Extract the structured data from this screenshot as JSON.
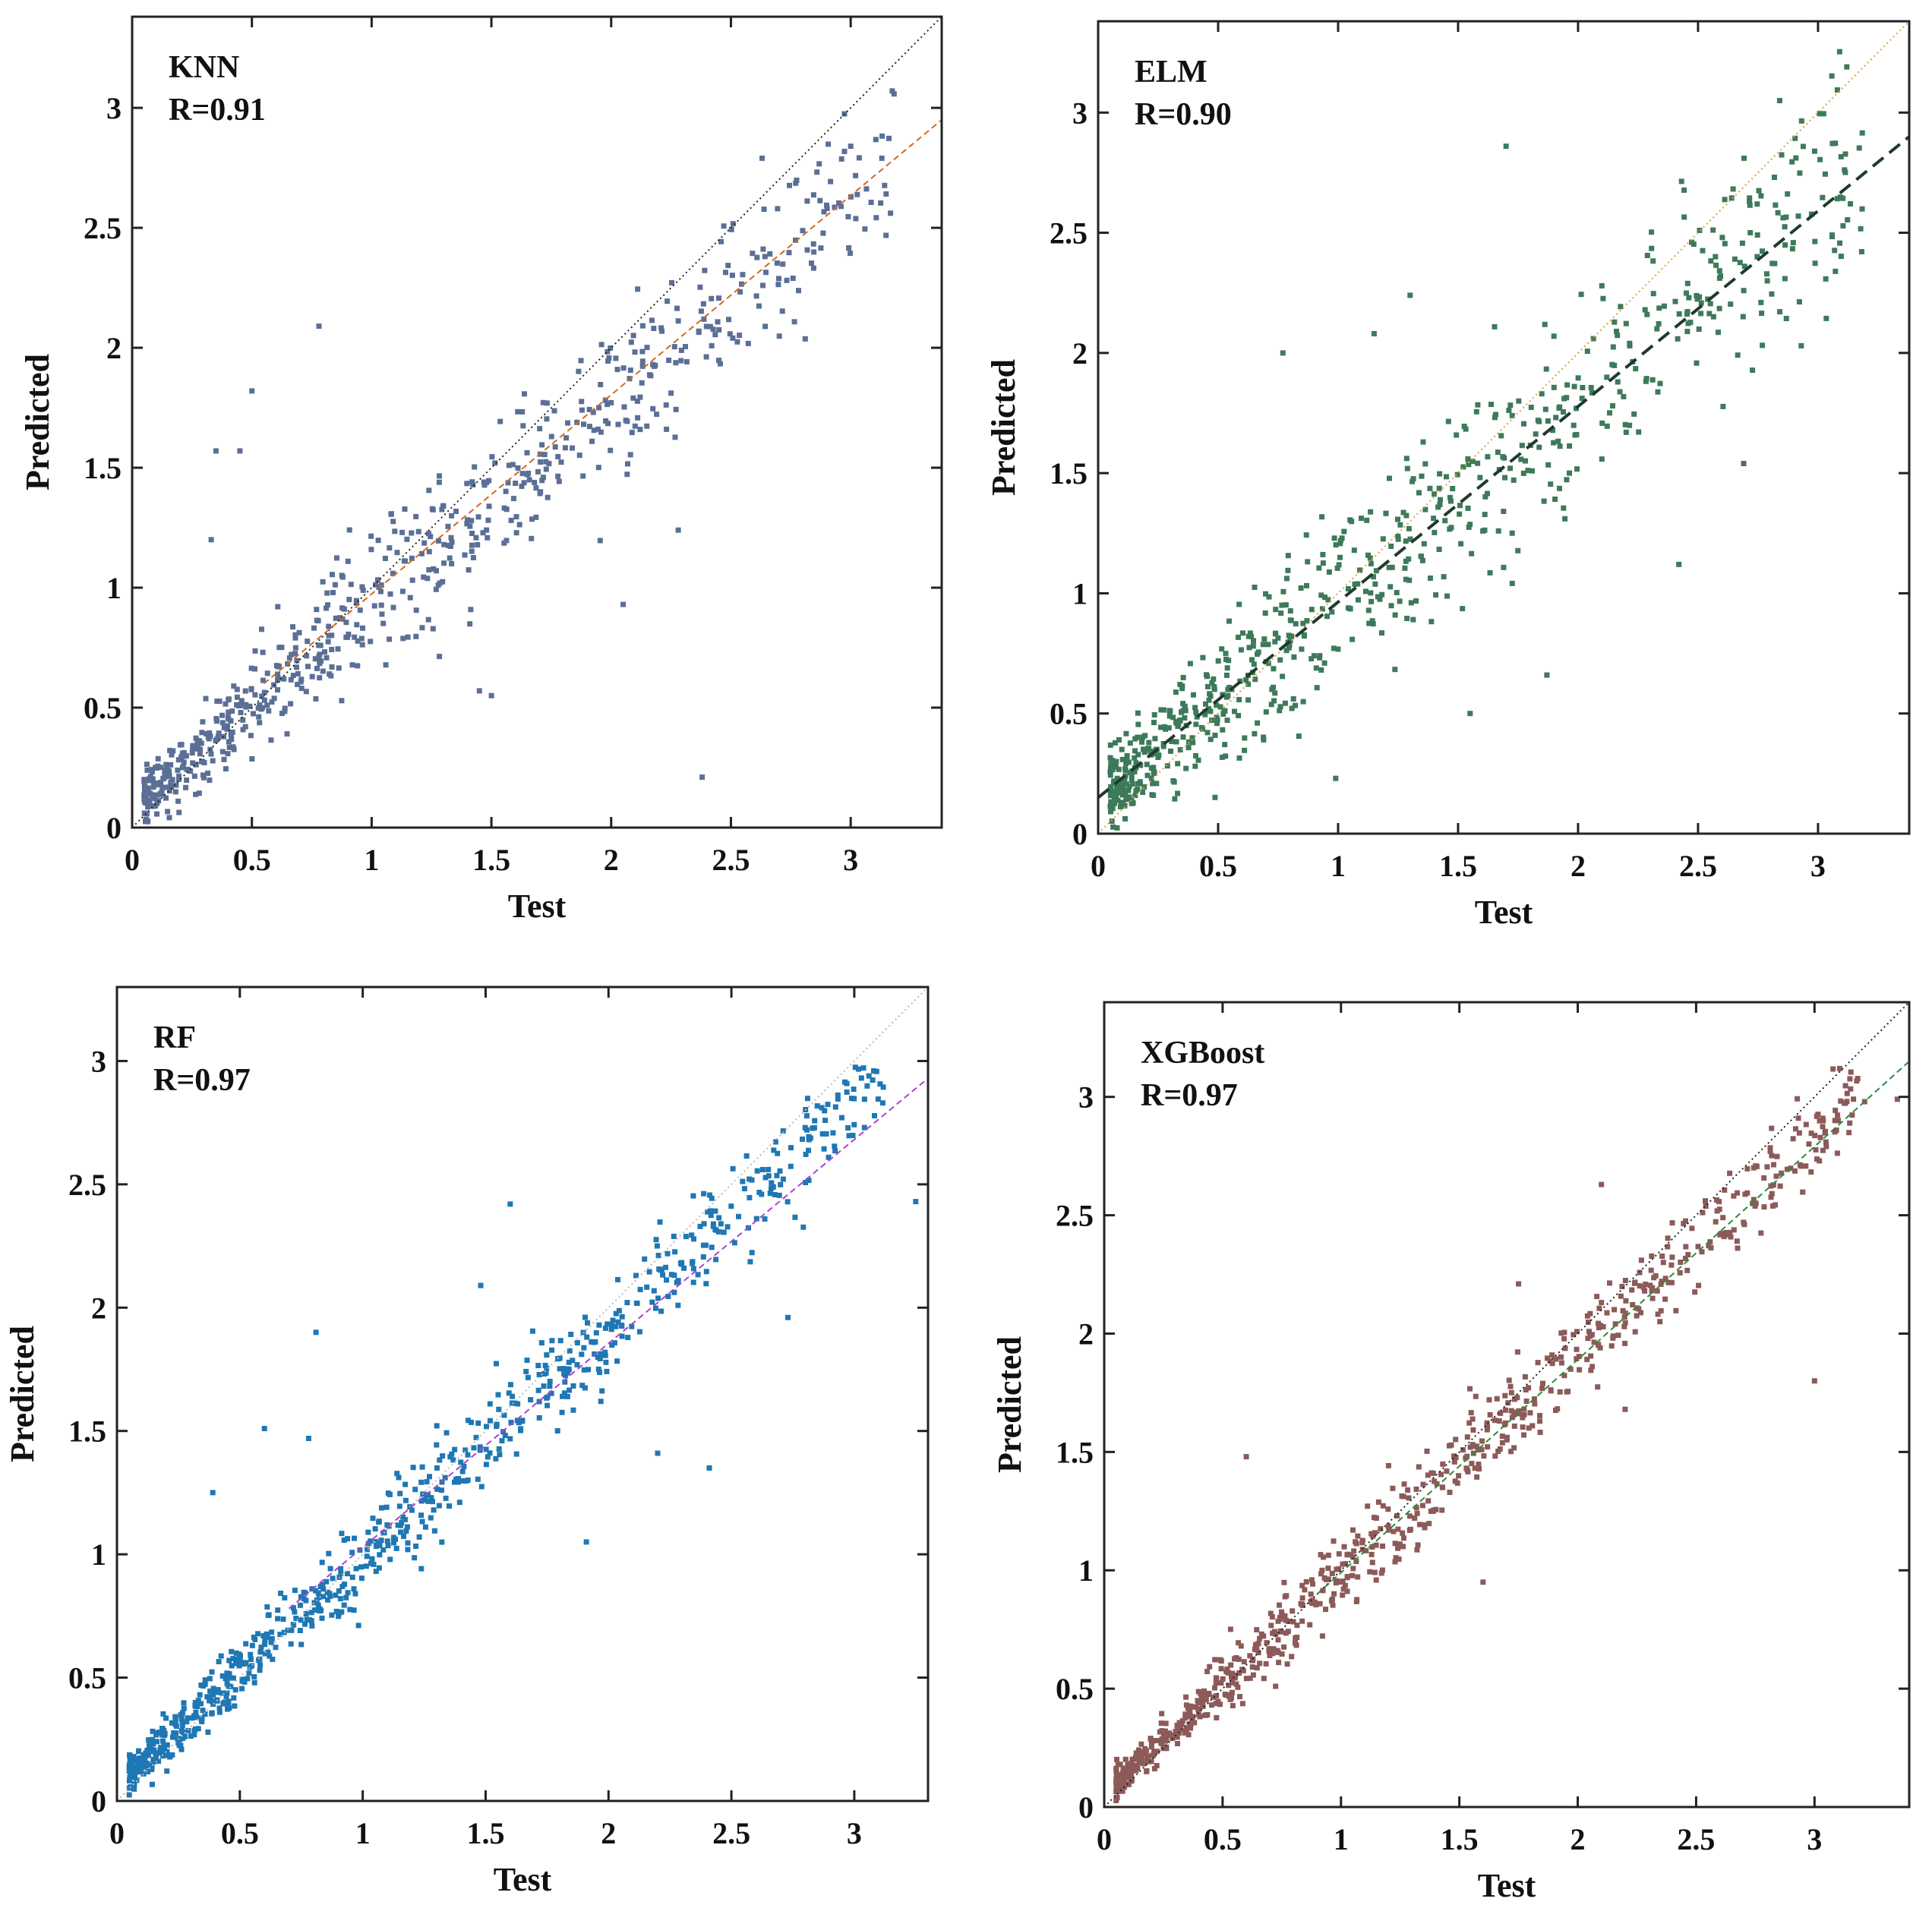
{
  "figure": {
    "panels": 4
  },
  "chart_data": [
    {
      "type": "scatter",
      "id": "knn",
      "title": "",
      "model_label": "KNN",
      "r_label": "R=0.91",
      "xlabel": "Test",
      "ylabel": "Predicted",
      "xlim": [
        0,
        3.38
      ],
      "ylim": [
        0,
        3.38
      ],
      "xticks": [
        "0",
        "0.5",
        "1",
        "1.5",
        "2",
        "2.5",
        "3"
      ],
      "yticks": [
        "0",
        "0.5",
        "1",
        "1.5",
        "2",
        "2.5",
        "3"
      ],
      "grid": false,
      "point_color": "#5b6f96",
      "identity_line": {
        "from": [
          0,
          0
        ],
        "to": [
          3.38,
          3.38
        ],
        "color": "#222222"
      },
      "fit_line": {
        "from": [
          0.55,
          0.6
        ],
        "to": [
          3.38,
          2.95
        ],
        "color": "#d2691e"
      },
      "sample_points": {
        "n": 700,
        "slope": 0.85,
        "intercept": 0.08,
        "noise": 0.2
      },
      "outliers": [
        [
          0.78,
          2.09
        ],
        [
          0.5,
          1.82
        ],
        [
          0.33,
          1.2
        ],
        [
          0.35,
          1.57
        ],
        [
          0.45,
          1.57
        ],
        [
          2.38,
          0.21
        ],
        [
          1.5,
          0.55
        ],
        [
          2.05,
          0.93
        ],
        [
          2.28,
          1.24
        ],
        [
          1.45,
          0.57
        ],
        [
          3.0,
          2.84
        ],
        [
          2.63,
          2.79
        ],
        [
          3.13,
          2.79
        ]
      ]
    },
    {
      "type": "scatter",
      "id": "elm",
      "title": "",
      "model_label": "ELM",
      "r_label": "R=0.90",
      "xlabel": "Test",
      "ylabel": "Predicted",
      "xlim": [
        0,
        3.38
      ],
      "ylim": [
        0,
        3.38
      ],
      "xticks": [
        "0",
        "0.5",
        "1",
        "1.5",
        "2",
        "2.5",
        "3"
      ],
      "yticks": [
        "0",
        "0.5",
        "1",
        "1.5",
        "2",
        "2.5",
        "3"
      ],
      "grid": false,
      "point_color": "#3d7a5a",
      "identity_line": {
        "from": [
          0,
          0
        ],
        "to": [
          3.38,
          3.38
        ],
        "color": "#d9a441"
      },
      "fit_line": {
        "from": [
          0,
          0.15
        ],
        "to": [
          3.38,
          2.9
        ],
        "color": "#1f3a2e"
      },
      "sample_points": {
        "n": 750,
        "slope": 0.82,
        "intercept": 0.15,
        "noise": 0.27
      },
      "outliers": [
        [
          1.7,
          2.86
        ],
        [
          2.84,
          3.05
        ],
        [
          3.12,
          3.19
        ],
        [
          0.99,
          0.23
        ],
        [
          1.87,
          0.66
        ],
        [
          2.42,
          1.12
        ],
        [
          2.69,
          1.54
        ],
        [
          2.93,
          2.03
        ],
        [
          1.3,
          2.24
        ],
        [
          0.77,
          2.0
        ],
        [
          1.55,
          0.5
        ],
        [
          1.15,
          2.08
        ]
      ]
    },
    {
      "type": "scatter",
      "id": "rf",
      "title": "",
      "model_label": "RF",
      "r_label": "R=0.97",
      "xlabel": "Test",
      "ylabel": "Predicted",
      "xlim": [
        0,
        3.3
      ],
      "ylim": [
        0,
        3.3
      ],
      "xticks": [
        "0",
        "0.5",
        "1",
        "1.5",
        "2",
        "2.5",
        "3"
      ],
      "yticks": [
        "0",
        "0.5",
        "1",
        "1.5",
        "2",
        "2.5",
        "3"
      ],
      "grid": false,
      "point_color": "#1f77b4",
      "identity_line": {
        "from": [
          0,
          0
        ],
        "to": [
          3.3,
          3.3
        ],
        "color": "#bbbbbb"
      },
      "fit_line": {
        "from": [
          0.7,
          0.78
        ],
        "to": [
          3.3,
          2.93
        ],
        "color": "#b041c9"
      },
      "sample_points": {
        "n": 800,
        "slope": 0.92,
        "intercept": 0.06,
        "noise": 0.12
      },
      "outliers": [
        [
          1.6,
          2.42
        ],
        [
          0.81,
          1.9
        ],
        [
          0.6,
          1.51
        ],
        [
          0.78,
          1.47
        ],
        [
          0.39,
          1.25
        ],
        [
          1.91,
          1.05
        ],
        [
          2.2,
          1.41
        ],
        [
          2.41,
          1.35
        ],
        [
          3.25,
          2.43
        ],
        [
          2.73,
          1.96
        ],
        [
          1.48,
          2.09
        ],
        [
          2.8,
          2.73
        ]
      ]
    },
    {
      "type": "scatter",
      "id": "xgboost",
      "title": "",
      "model_label": "XGBoost",
      "r_label": "R=0.97",
      "xlabel": "Test",
      "ylabel": "Predicted",
      "xlim": [
        0,
        3.4
      ],
      "ylim": [
        0,
        3.4
      ],
      "xticks": [
        "0",
        "0.5",
        "1",
        "1.5",
        "2",
        "2.5",
        "3"
      ],
      "yticks": [
        "0",
        "0.5",
        "1",
        "1.5",
        "2",
        "2.5",
        "3"
      ],
      "grid": false,
      "point_color": "#8c5a58",
      "identity_line": {
        "from": [
          0,
          0
        ],
        "to": [
          3.4,
          3.4
        ],
        "color": "#222222"
      },
      "fit_line": {
        "from": [
          0.9,
          0.9
        ],
        "to": [
          3.4,
          3.15
        ],
        "color": "#2e8b3a"
      },
      "sample_points": {
        "n": 800,
        "slope": 0.93,
        "intercept": 0.05,
        "noise": 0.12
      },
      "outliers": [
        [
          3.0,
          1.8
        ],
        [
          2.1,
          2.63
        ],
        [
          2.7,
          2.47
        ],
        [
          0.6,
          1.48
        ],
        [
          1.6,
          0.95
        ],
        [
          1.75,
          2.21
        ],
        [
          2.2,
          1.68
        ],
        [
          3.35,
          2.99
        ],
        [
          3.1,
          2.9
        ]
      ]
    }
  ]
}
